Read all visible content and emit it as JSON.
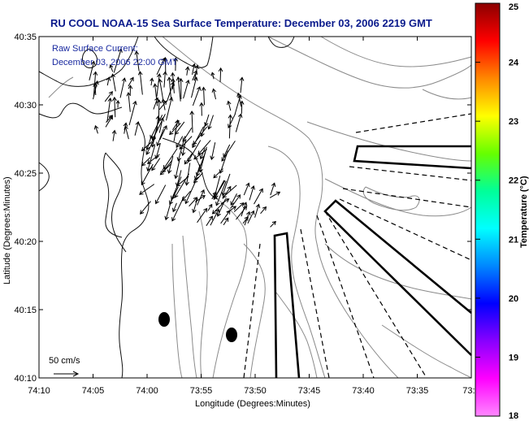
{
  "title": "RU COOL  NOAA-15  Sea Surface Temperature:  December 03, 2006 2219 GMT",
  "current_label": "Raw Surface Current:",
  "current_time": "December 03, 2006 22:00 GMT",
  "scale_label": "50 cm/s",
  "x_axis": {
    "label": "Longitude (Degrees:Minutes)",
    "ticks": [
      "74:10",
      "74:05",
      "74:00",
      "73:55",
      "73:50",
      "73:45",
      "73:40",
      "73:35",
      "73:3"
    ]
  },
  "y_axis": {
    "label": "Latitude (Degrees:Minutes)",
    "ticks": [
      "40:35",
      "40:30",
      "40:25",
      "40:20",
      "40:15",
      "40:10"
    ]
  },
  "colorbar": {
    "label": "Temperature (°C)",
    "ticks": [
      "25",
      "24",
      "23",
      "22",
      "21",
      "20",
      "19",
      "18"
    ],
    "colors": [
      "#8b0000",
      "#ff0000",
      "#ff8800",
      "#ffff00",
      "#66ff00",
      "#00ff99",
      "#00ffff",
      "#0088ff",
      "#0000ff",
      "#8800ff",
      "#ff00ff",
      "#ff88ff"
    ]
  }
}
